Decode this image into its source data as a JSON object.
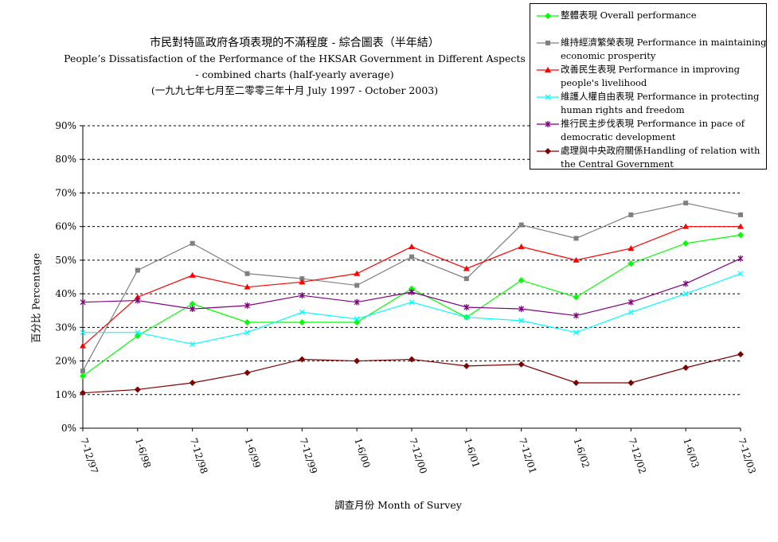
{
  "title": {
    "line1": "市民對特區政府各項表現的不滿程度 - 綜合圖表（半年結）",
    "line2": "People’s Dissatisfaction of the Performance of the HKSAR Government in Different Aspects",
    "line3": "- combined charts (half-yearly average)",
    "line4": "(一九九七年七月至二零零三年十月 July 1997 - October 2003)"
  },
  "chart_data": {
    "type": "line",
    "title": "市民對特區政府各項表現的不滿程度 - 綜合圖表（半年結）",
    "xlabel": "調查月份 Month of Survey",
    "ylabel": "百分比 Percentage",
    "ylim": [
      0,
      90
    ],
    "yticks": [
      "0%",
      "10%",
      "20%",
      "30%",
      "40%",
      "50%",
      "60%",
      "70%",
      "80%",
      "90%"
    ],
    "grid": "horizontal dashed",
    "legend_position": "top-right",
    "categories": [
      "7-12/97",
      "1-6/98",
      "7-12/98",
      "1-6/99",
      "7-12/99",
      "1-6/00",
      "7-12/00",
      "1-6/01",
      "7-12/01",
      "1-6/02",
      "7-12/02",
      "1-6/03",
      "7-12/03"
    ],
    "series": [
      {
        "name": "整體表現 Overall performance",
        "color": "#00ff00",
        "marker": "diamond",
        "values": [
          15.5,
          27.5,
          37,
          31.5,
          31.5,
          31.5,
          41.5,
          33,
          44,
          39,
          49,
          55,
          57.5
        ]
      },
      {
        "name": "維持經濟繁榮表現 Performance in maintaining economic prosperity",
        "color": "#808080",
        "marker": "square",
        "values": [
          17,
          47,
          55,
          46,
          44.5,
          42.5,
          51,
          44.5,
          60.5,
          56.5,
          63.5,
          67,
          63.5
        ]
      },
      {
        "name": "改善民生表現 Performance in improving people's livelihood",
        "color": "#ff0000",
        "marker": "triangle",
        "values": [
          24.5,
          39,
          45.5,
          42,
          43.5,
          46,
          54,
          47.5,
          54,
          50,
          53.5,
          60,
          60
        ]
      },
      {
        "name": "維護人權自由表現 Performance in protecting human rights and freedom",
        "color": "#00ffff",
        "marker": "x",
        "values": [
          28.5,
          28.5,
          25,
          28.5,
          34.5,
          32.5,
          37.5,
          33,
          32,
          28.5,
          34.5,
          40,
          46
        ]
      },
      {
        "name": "推行民主步伐表現 Performance in pace of democratic development",
        "color": "#800080",
        "marker": "star",
        "values": [
          37.5,
          38,
          35.5,
          36.5,
          39.5,
          37.5,
          40.5,
          36,
          35.5,
          33.5,
          37.5,
          43,
          50.5
        ]
      },
      {
        "name": "處理與中央政府關係Handling of relation with the Central Government",
        "color": "#800000",
        "marker": "diamond",
        "values": [
          10.5,
          11.5,
          13.5,
          16.5,
          20.5,
          20,
          20.5,
          18.5,
          19,
          13.5,
          13.5,
          18,
          22
        ]
      }
    ]
  }
}
